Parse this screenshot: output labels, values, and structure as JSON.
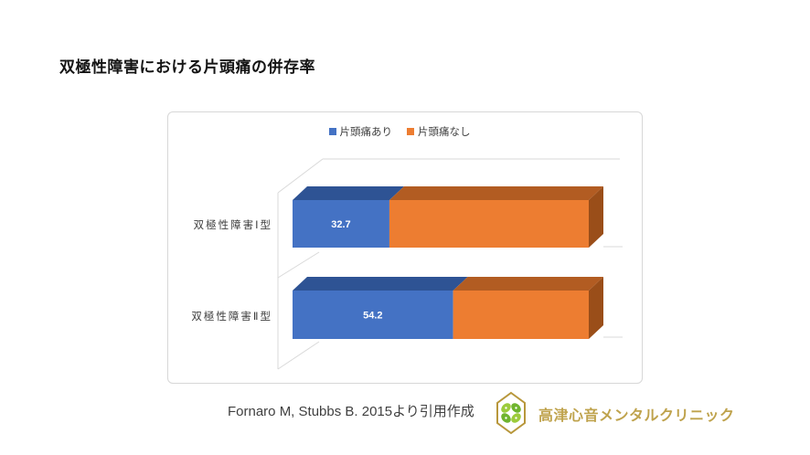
{
  "page": {
    "title": "双極性障害における片頭痛の併存率"
  },
  "chart_data": {
    "type": "bar",
    "orientation": "horizontal",
    "stacked": true,
    "style": "3d",
    "categories": [
      "双極性障害Ⅰ型",
      "双極性障害Ⅱ型"
    ],
    "series": [
      {
        "name": "片頭痛あり",
        "values": [
          32.7,
          54.2
        ],
        "color": "#4472C4"
      },
      {
        "name": "片頭痛なし",
        "values": [
          67.3,
          45.8
        ],
        "color": "#ED7D31"
      }
    ],
    "value_labels": [
      "32.7",
      "54.2"
    ],
    "xlim": [
      0,
      100
    ],
    "legend_position": "top",
    "grid": "3d-wall-frame"
  },
  "footer": {
    "citation": "Fornaro M, Stubbs B. 2015より引用作成",
    "clinic_name": "高津心音メンタルクリニック"
  },
  "colors": {
    "series1_front": "#4472C4",
    "series1_top": "#2E5394",
    "series2_front": "#ED7D31",
    "series2_top": "#B25C22",
    "series2_side": "#9A4E19",
    "frame": "#D9D9D9",
    "value_label_text": "#FFFFFF",
    "clinic_gold": "#BFA34D",
    "logo_hex_stroke": "#B8973B",
    "logo_green_light": "#9CCB3B",
    "logo_green_dark": "#6FB42E"
  }
}
